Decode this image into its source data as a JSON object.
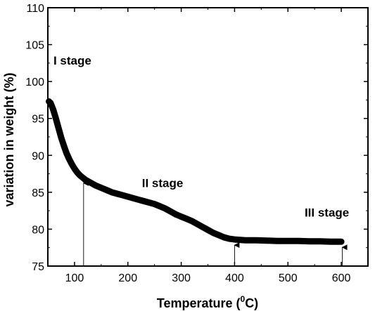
{
  "chart_data": {
    "type": "line",
    "title": "",
    "xlabel": "Temperature (",
    "xlabel_sup": "0",
    "xlabel_end": "C)",
    "ylabel": "variation in weight (%)",
    "xlim": [
      50,
      650
    ],
    "ylim": [
      75,
      110
    ],
    "x_ticks": [
      100,
      200,
      300,
      400,
      500,
      600
    ],
    "x_tick_labels": [
      "100",
      "200",
      "300",
      "400",
      "500",
      "600"
    ],
    "y_ticks": [
      75,
      80,
      85,
      90,
      95,
      100,
      105,
      110
    ],
    "y_tick_labels": [
      "75",
      "80",
      "85",
      "90",
      "95",
      "100",
      "105",
      "110"
    ],
    "grid": false,
    "series": [
      {
        "color": "#000000",
        "x": [
          52,
          55,
          60,
          65,
          70,
          75,
          80,
          85,
          90,
          95,
          100,
          105,
          110,
          115,
          120,
          130,
          140,
          150,
          160,
          170,
          180,
          190,
          200,
          210,
          220,
          230,
          240,
          250,
          260,
          270,
          280,
          290,
          300,
          310,
          320,
          330,
          340,
          350,
          360,
          370,
          380,
          390,
          400,
          420,
          440,
          460,
          480,
          500,
          520,
          540,
          560,
          580,
          600
        ],
        "y": [
          97.3,
          97.1,
          96.2,
          95.0,
          93.7,
          92.4,
          91.3,
          90.3,
          89.5,
          88.8,
          88.2,
          87.7,
          87.3,
          87.0,
          86.7,
          86.3,
          85.9,
          85.6,
          85.3,
          85.0,
          84.8,
          84.6,
          84.4,
          84.2,
          84.0,
          83.8,
          83.6,
          83.4,
          83.1,
          82.8,
          82.4,
          82.0,
          81.7,
          81.4,
          81.1,
          80.7,
          80.3,
          79.9,
          79.5,
          79.2,
          78.9,
          78.7,
          78.6,
          78.5,
          78.5,
          78.45,
          78.4,
          78.4,
          78.4,
          78.35,
          78.35,
          78.3,
          78.3
        ]
      }
    ],
    "stage_markers": [
      {
        "x": 117,
        "y": 87.0
      },
      {
        "x": 400,
        "y": 78.6
      },
      {
        "x": 602,
        "y": 78.3
      }
    ],
    "annotations": [
      {
        "text": "I stage",
        "x": 96,
        "y": 102.3
      },
      {
        "text": "II stage",
        "x": 265,
        "y": 85.7
      },
      {
        "text": "III stage",
        "x": 573,
        "y": 81.7
      }
    ]
  }
}
